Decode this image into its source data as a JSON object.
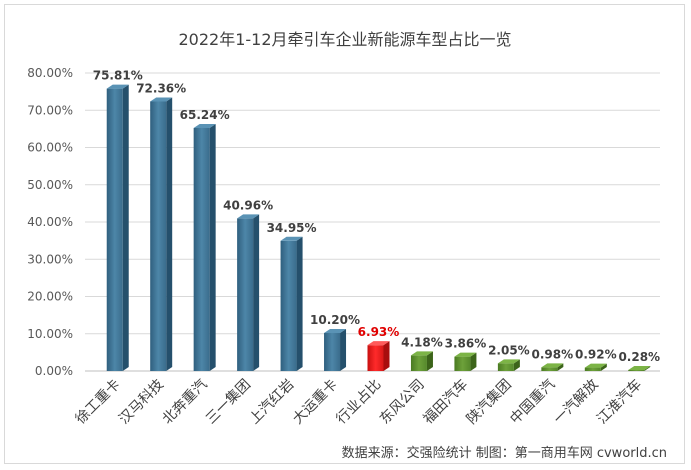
{
  "chart_data": {
    "type": "bar",
    "title": "2022年1-12月牵引车企业新能源车型占比一览",
    "categories": [
      "徐工重卡",
      "汉马科技",
      "北奔重汽",
      "三一集团",
      "上汽红岩",
      "大运重卡",
      "行业占比",
      "东风公司",
      "福田汽车",
      "陕汽集团",
      "中国重汽",
      "一汽解放",
      "江淮汽车"
    ],
    "values": [
      75.81,
      72.36,
      65.24,
      40.96,
      34.95,
      10.2,
      6.93,
      4.18,
      3.86,
      2.05,
      0.98,
      0.92,
      0.28
    ],
    "data_labels": [
      "75.81%",
      "72.36%",
      "65.24%",
      "40.96%",
      "34.95%",
      "10.20%",
      "6.93%",
      "4.18%",
      "3.86%",
      "2.05%",
      "0.98%",
      "0.92%",
      "0.28%"
    ],
    "bar_groups": [
      "blue",
      "blue",
      "blue",
      "blue",
      "blue",
      "blue",
      "red",
      "green",
      "green",
      "green",
      "green",
      "green",
      "green"
    ],
    "group_colors": {
      "blue": "#3b6f8f",
      "red": "#e41b17",
      "green": "#5a8a2e"
    },
    "y_ticks": [
      "0.00%",
      "10.00%",
      "20.00%",
      "30.00%",
      "40.00%",
      "50.00%",
      "60.00%",
      "70.00%",
      "80.00%"
    ],
    "ylim": [
      0,
      80
    ],
    "grid": true,
    "legend": "none",
    "xlabel": "",
    "ylabel": ""
  },
  "source_note": "数据来源：交强险统计   制图：第一商用车网 cvworld.cn"
}
